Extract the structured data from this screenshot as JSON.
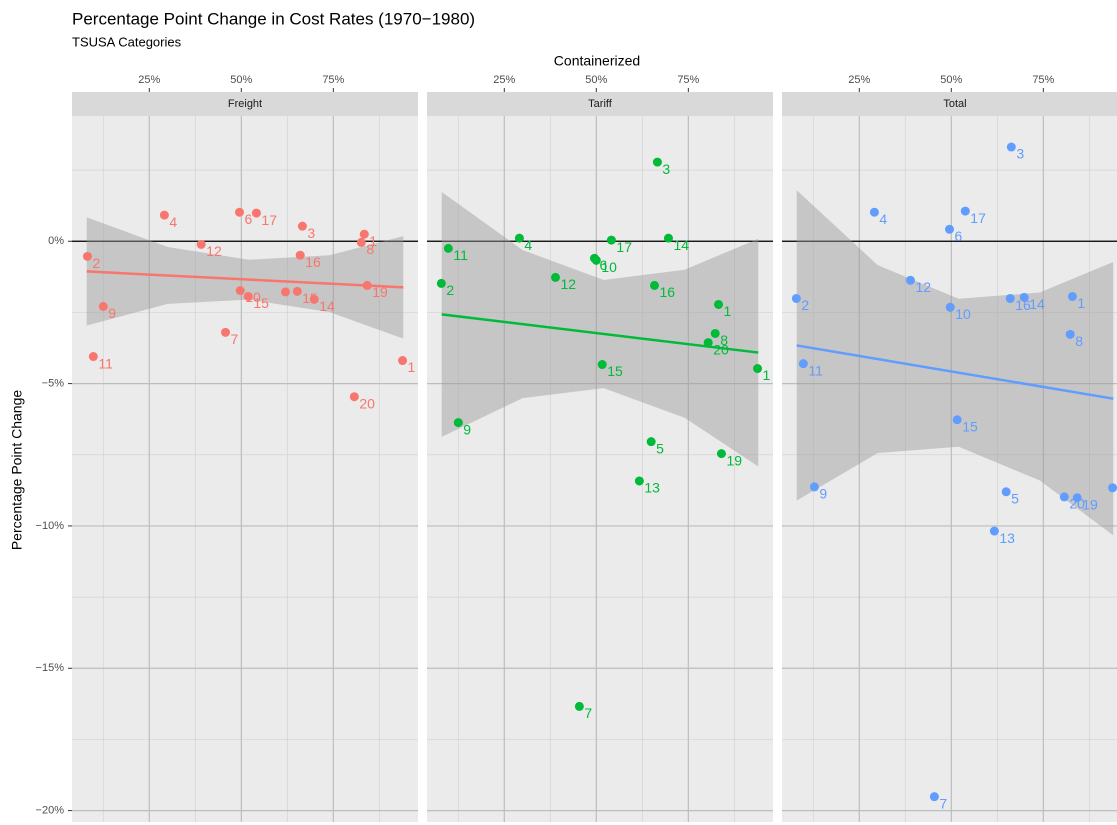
{
  "chart_data": {
    "type": "scatter",
    "title": "Percentage Point Change in Cost Rates (1970−1980)",
    "subtitle": "TSUSA Categories",
    "x_label": "Containerized",
    "y_label": "Percentage Point Change",
    "xlim": [
      4,
      98
    ],
    "ylim": [
      -20.4,
      4.4
    ],
    "xticks": [
      {
        "value": 25,
        "label": "25%"
      },
      {
        "value": 50,
        "label": "50%"
      },
      {
        "value": 75,
        "label": "75%"
      }
    ],
    "yticks": [
      {
        "value": -20,
        "label": "−20%"
      },
      {
        "value": -15,
        "label": "−15%"
      },
      {
        "value": -10,
        "label": "−10%"
      },
      {
        "value": -5,
        "label": "−5%"
      },
      {
        "value": 0,
        "label": "0%"
      }
    ],
    "hline": 0,
    "grid": true,
    "panels": [
      {
        "name": "Freight",
        "color": "#F8766D",
        "x": [
          8.2,
          12.5,
          9.8,
          29.1,
          39.1,
          45.7,
          49.5,
          54.1,
          49.7,
          51.9,
          66.6,
          66.0,
          62.0,
          65.2,
          69.8,
          83.4,
          82.6,
          84.2,
          80.7,
          93.8
        ],
        "values": [
          -0.53,
          -2.29,
          -4.05,
          0.92,
          -0.11,
          -3.2,
          1.02,
          0.99,
          -1.73,
          -1.94,
          0.53,
          -0.49,
          -1.78,
          -1.76,
          -2.04,
          0.25,
          -0.04,
          -1.55,
          -5.46,
          -4.19
        ],
        "labels": [
          "2",
          "9",
          "11",
          "4",
          "12",
          "7",
          "6",
          "17",
          "10",
          "15",
          "3",
          "16",
          null,
          "15",
          "14",
          "1",
          "8",
          "19",
          "20",
          "1"
        ],
        "fit": {
          "x": [
            8,
            94
          ],
          "values": [
            -1.06,
            -1.62
          ]
        },
        "band": {
          "x": [
            8,
            30,
            52,
            74,
            94
          ],
          "upper": [
            0.84,
            -0.2,
            -0.65,
            -0.49,
            0.18
          ],
          "lower": [
            -2.96,
            -2.2,
            -2.05,
            -2.49,
            -3.42
          ]
        }
      },
      {
        "name": "Tariff",
        "color": "#00BA38",
        "x": [
          9.8,
          7.9,
          12.5,
          29.1,
          38.9,
          49.5,
          50.0,
          54.1,
          66.6,
          69.6,
          65.8,
          51.6,
          83.2,
          82.3,
          80.4,
          93.8,
          64.9,
          84.0,
          61.7,
          45.4
        ],
        "values": [
          -0.25,
          -1.48,
          -6.37,
          0.11,
          -1.27,
          -0.6,
          -0.67,
          0.04,
          2.78,
          0.11,
          -1.55,
          -4.33,
          -2.22,
          -3.24,
          -3.56,
          -4.47,
          -7.04,
          -7.46,
          -8.42,
          -16.34
        ],
        "labels": [
          "11",
          "2",
          "9",
          "4",
          "12",
          "6",
          "10",
          "17",
          "3",
          "14",
          "16",
          "15",
          "1",
          "8",
          "20",
          "1",
          "5",
          "19",
          "13",
          "7"
        ],
        "fit": {
          "x": [
            8,
            94
          ],
          "values": [
            -2.57,
            -3.91
          ]
        },
        "band": {
          "x": [
            8,
            30,
            52,
            74,
            94
          ],
          "upper": [
            1.73,
            -0.31,
            -1.36,
            -1.0,
            0.09
          ],
          "lower": [
            -6.87,
            -5.51,
            -5.16,
            -6.2,
            -7.91
          ]
        }
      },
      {
        "name": "Total",
        "color": "#619CFF",
        "x": [
          7.9,
          9.8,
          12.8,
          29.1,
          38.9,
          49.5,
          53.8,
          66.3,
          49.7,
          66.0,
          69.8,
          82.9,
          82.3,
          51.6,
          64.9,
          61.7,
          80.7,
          84.2,
          93.8,
          45.4
        ],
        "values": [
          -2.01,
          -4.3,
          -8.63,
          1.02,
          -1.37,
          0.42,
          1.06,
          3.31,
          -2.32,
          -2.01,
          -1.97,
          -1.94,
          -3.27,
          -6.27,
          -8.8,
          -10.18,
          -8.98,
          -9.01,
          -8.66,
          -19.51
        ],
        "labels": [
          "2",
          "11",
          "9",
          "4",
          "12",
          "6",
          "17",
          "3",
          "10",
          "16",
          "14",
          "1",
          "8",
          "15",
          "5",
          "13",
          "20",
          "19",
          null,
          "7"
        ],
        "fit": {
          "x": [
            8,
            94
          ],
          "values": [
            -3.66,
            -5.53
          ]
        },
        "band": {
          "x": [
            8,
            30,
            52,
            74,
            94
          ],
          "upper": [
            1.79,
            -0.84,
            -2.02,
            -1.8,
            -0.73
          ],
          "lower": [
            -9.11,
            -7.44,
            -7.22,
            -8.4,
            -10.33
          ]
        }
      }
    ]
  }
}
